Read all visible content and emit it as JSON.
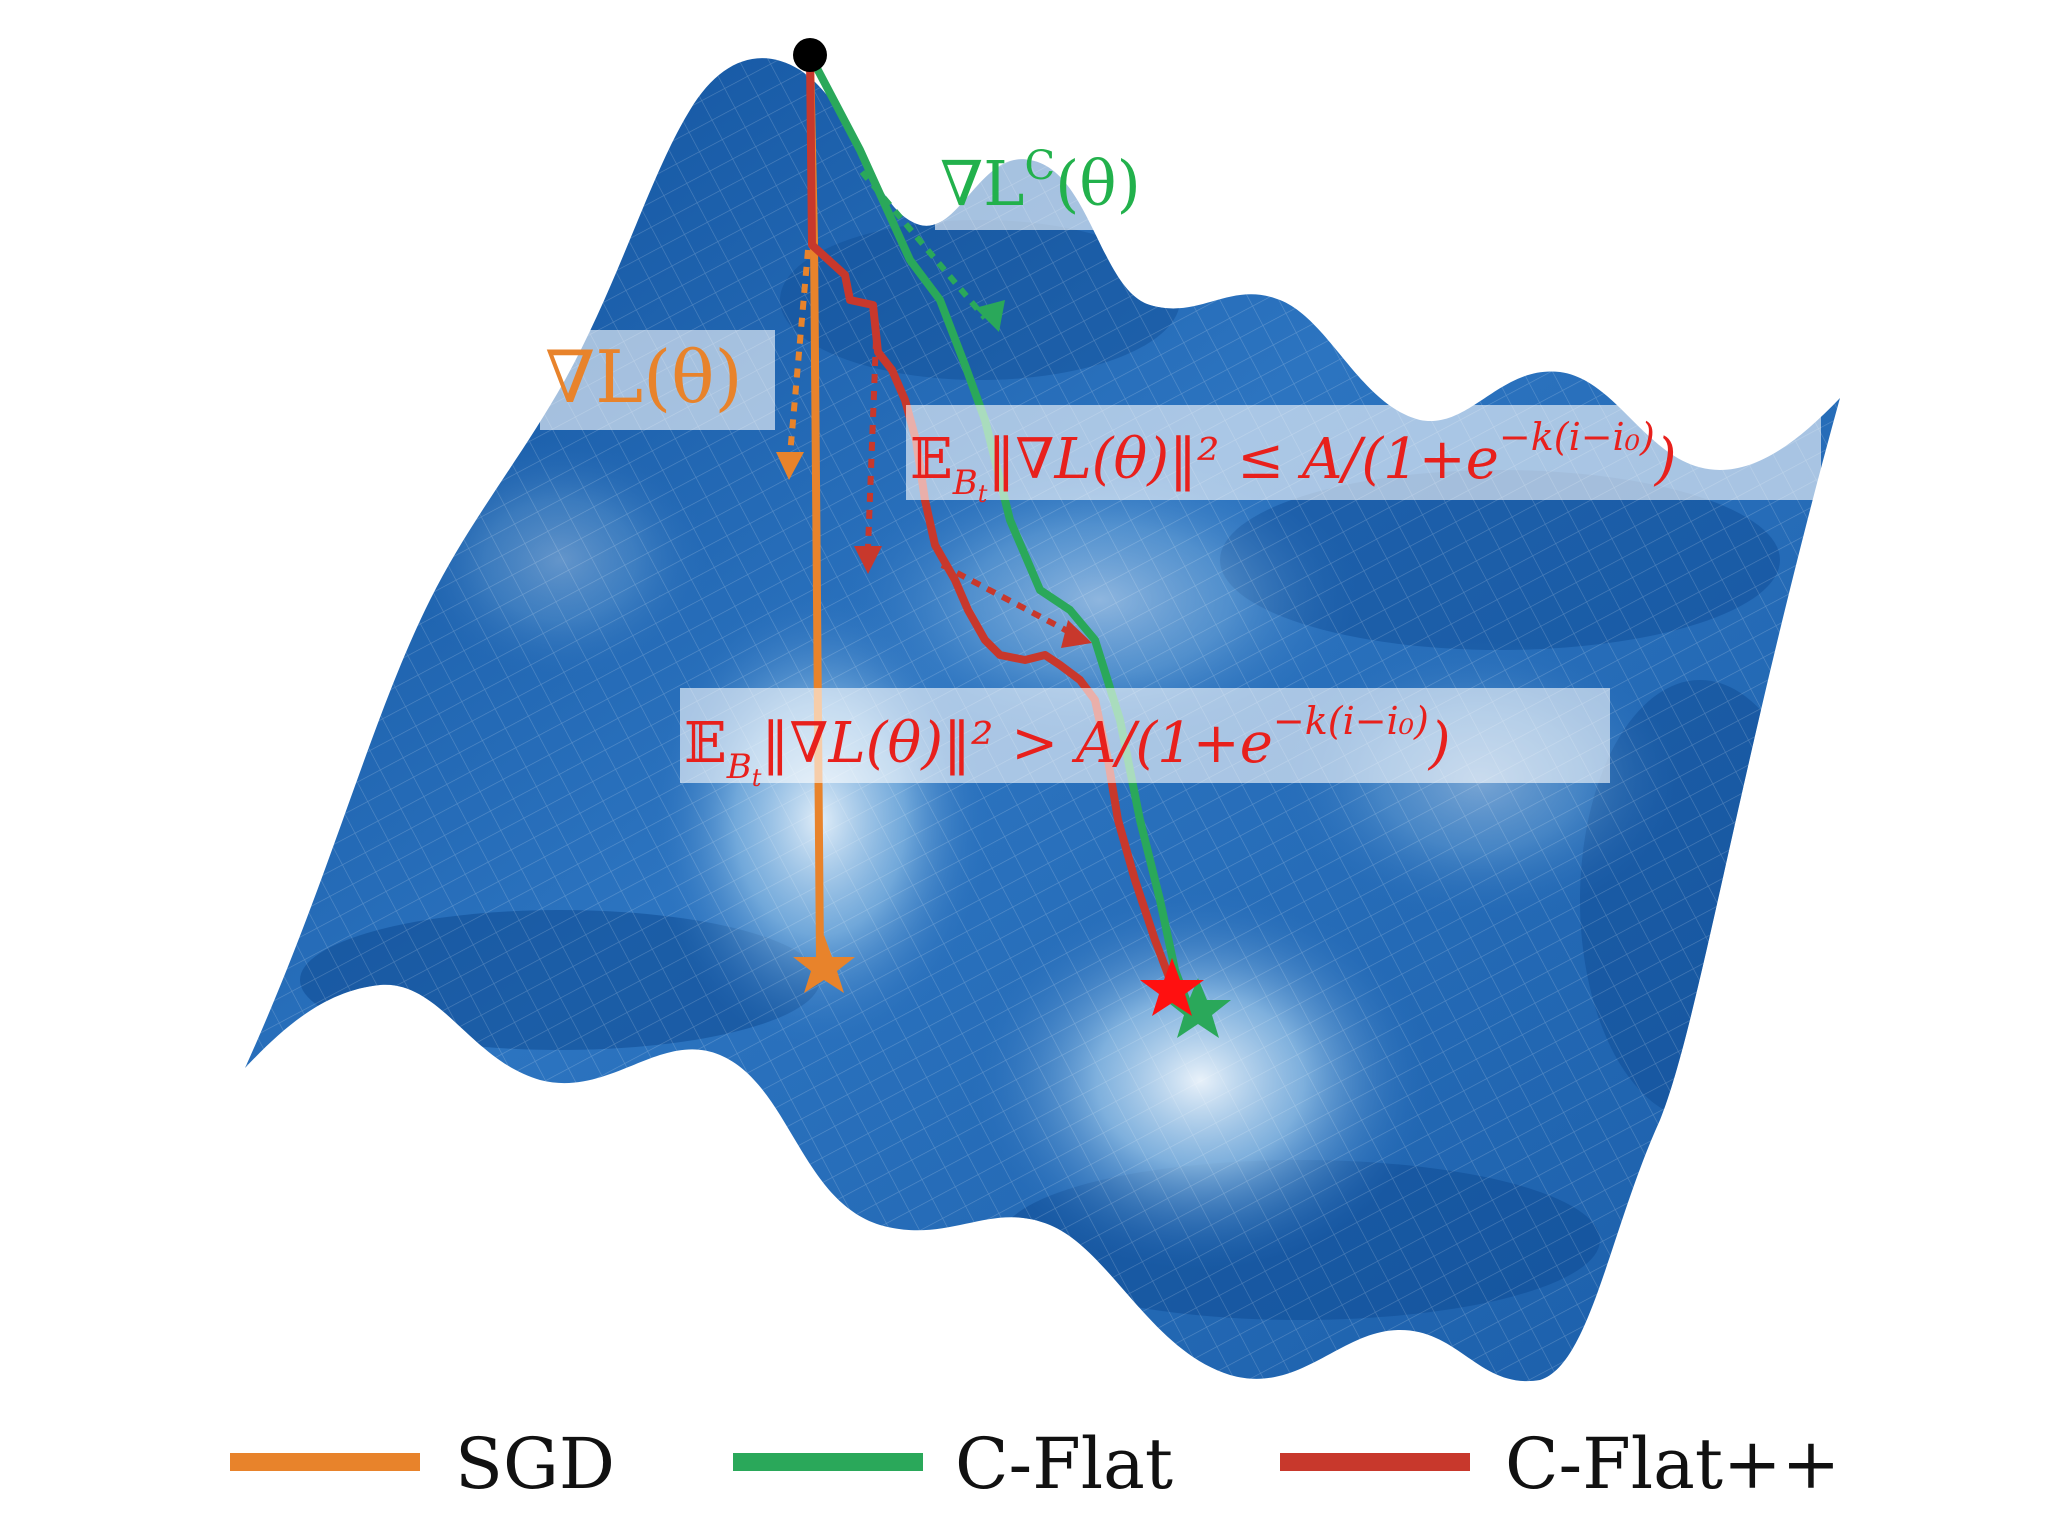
{
  "colors": {
    "sgd": "#e8832b",
    "cflat": "#2aa85a",
    "cflatpp": "#c8382c",
    "label_green": "#22b14c",
    "label_red": "#e8201c",
    "surface_dark": "#0f4f9a",
    "surface_mid": "#2b72bf",
    "surface_light": "#bcd9f0",
    "start_point": "#000000"
  },
  "annotations": {
    "grad_cflat": "∇L",
    "grad_cflat_sup": "C",
    "grad_cflat_arg": "(θ)",
    "grad_sgd": "∇L(θ)",
    "cond_le": "𝔼",
    "cond_le_sub": "B",
    "cond_le_subsub": "t",
    "cond_le_body": "‖∇L(θ)‖² ≤ A/(1+e",
    "cond_le_exp": "−k(i−i₀)",
    "cond_le_close": ")",
    "cond_gt": "𝔼",
    "cond_gt_sub": "B",
    "cond_gt_subsub": "t",
    "cond_gt_body": "‖∇L(θ)‖² > A/(1+e",
    "cond_gt_exp": "−k(i−i₀)",
    "cond_gt_close": ")"
  },
  "legend": {
    "sgd": "SGD",
    "cflat": "C-Flat",
    "cflatpp": "C-Flat++"
  },
  "icons": {
    "start": "start-point-icon",
    "end_sgd": "star-icon",
    "end_cflat": "star-icon",
    "end_cflatpp": "star-icon"
  }
}
